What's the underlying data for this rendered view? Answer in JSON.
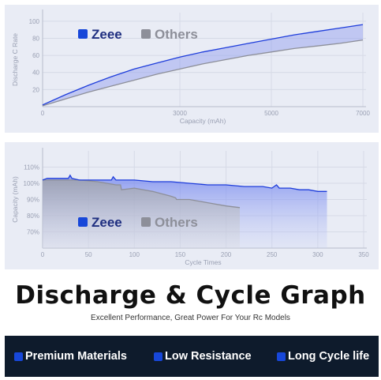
{
  "chart_data": [
    {
      "type": "area",
      "xlabel": "Capacity (mAh)",
      "ylabel": "Discharge C Rate",
      "xlim": [
        0,
        7000
      ],
      "ylim": [
        0,
        110
      ],
      "x_ticks": [
        "0",
        "3000",
        "5000",
        "7000"
      ],
      "y_ticks": [
        "20",
        "40",
        "60",
        "80",
        "100"
      ],
      "series": [
        {
          "name": "Zeee",
          "color": "#1e3ddb",
          "x": [
            0,
            500,
            1000,
            1500,
            2000,
            2500,
            3000,
            3500,
            4000,
            4500,
            5000,
            5500,
            6000,
            6500,
            7000
          ],
          "y": [
            2,
            14,
            25,
            35,
            44,
            51,
            58,
            64,
            69,
            74,
            79,
            84,
            88,
            92,
            96
          ]
        },
        {
          "name": "Others",
          "color": "#8d8f99",
          "x": [
            0,
            500,
            1000,
            1500,
            2000,
            2500,
            3000,
            3500,
            4000,
            4500,
            5000,
            5500,
            6000,
            6500,
            7000
          ],
          "y": [
            1,
            9,
            17,
            24,
            31,
            38,
            44,
            50,
            55,
            60,
            64,
            68,
            71,
            74,
            78
          ]
        }
      ],
      "legend": "top-left"
    },
    {
      "type": "area",
      "xlabel": "Cycle Times",
      "ylabel": "Capacity (mAh)",
      "xlim": [
        0,
        350
      ],
      "ylim": [
        60,
        120
      ],
      "x_ticks": [
        "0",
        "50",
        "100",
        "150",
        "200",
        "250",
        "300",
        "350"
      ],
      "y_ticks": [
        "70%",
        "80%",
        "90%",
        "100%",
        "110%"
      ],
      "series": [
        {
          "name": "Zeee",
          "color": "#1e3ddb",
          "x": [
            0,
            5,
            10,
            20,
            28,
            30,
            32,
            40,
            60,
            75,
            77,
            80,
            100,
            120,
            140,
            160,
            180,
            200,
            220,
            240,
            250,
            255,
            258,
            260,
            270,
            280,
            290,
            300,
            310
          ],
          "y": [
            102,
            103,
            103,
            103,
            103,
            105,
            103,
            102,
            102,
            102,
            104,
            102,
            102,
            101,
            101,
            100,
            99,
            99,
            98,
            98,
            97,
            99,
            97,
            97,
            97,
            96,
            96,
            95,
            95
          ]
        },
        {
          "name": "Others",
          "color": "#8d8f99",
          "x": [
            0,
            20,
            40,
            60,
            80,
            85,
            86,
            100,
            120,
            140,
            145,
            146,
            160,
            180,
            200,
            215
          ],
          "y": [
            102,
            102,
            102,
            101,
            99,
            99,
            96,
            97,
            95,
            92,
            91,
            90,
            90,
            88,
            86,
            85
          ]
        }
      ],
      "legend": "bottom-left"
    }
  ],
  "headline": "Discharge & Cycle Graph",
  "subtitle": "Excellent Performance, Great Power For Your Rc Models",
  "features": [
    {
      "label": "Premium Materials"
    },
    {
      "label": "Low Resistance"
    },
    {
      "label": "Long Cycle life"
    }
  ],
  "colors": {
    "zeee": "#1e3ddb",
    "others": "#8d8f99",
    "panel": "#e9ecf5",
    "feature_bar": "#0e1b2c",
    "feature_square": "#1747d9"
  }
}
